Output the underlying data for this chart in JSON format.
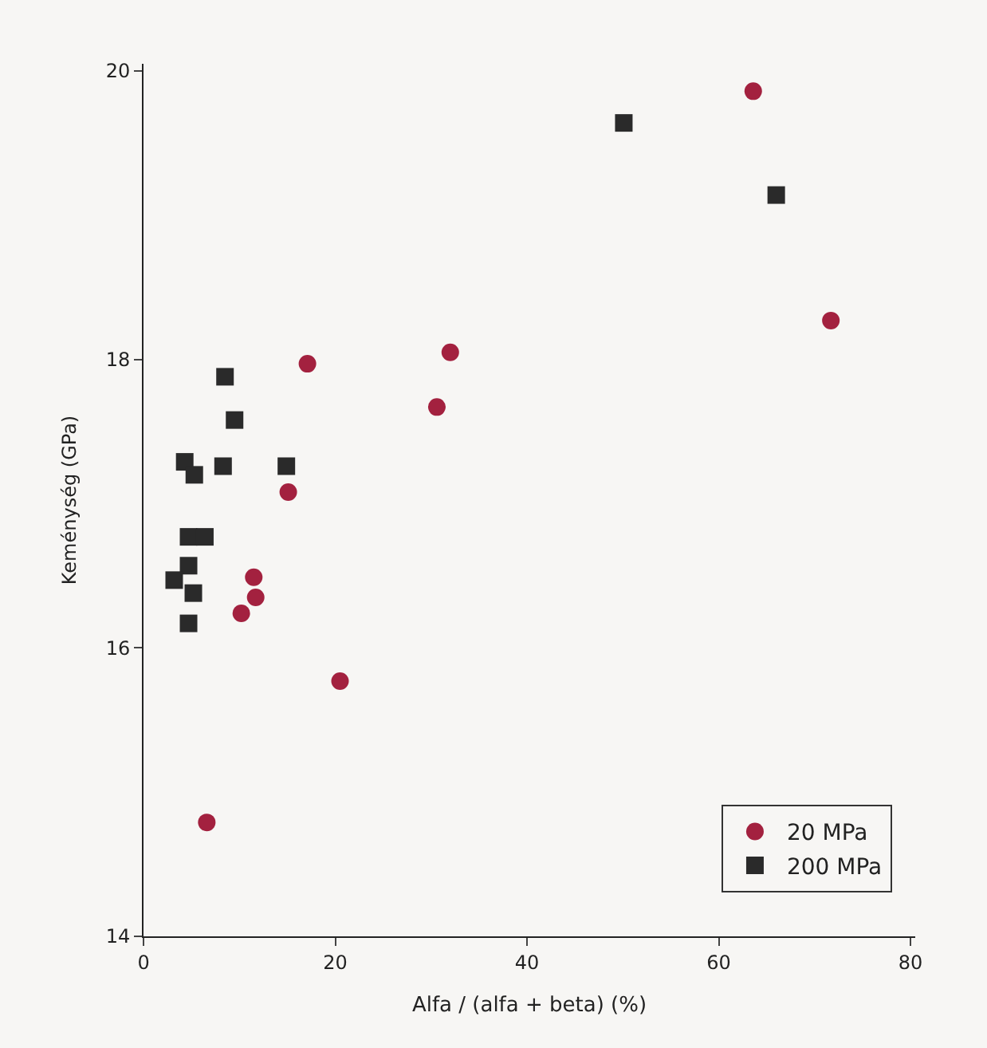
{
  "chart_data": {
    "type": "scatter",
    "xlabel": "Alfa / (alfa + beta) (%)",
    "ylabel": "Keménység (GPa)",
    "xlim": [
      0,
      80.5
    ],
    "xticks": [
      0,
      20,
      40,
      60,
      80
    ],
    "ylim": [
      14,
      20.05
    ],
    "yticks": [
      14,
      16,
      18,
      20
    ],
    "grid": false,
    "legend": "bottom right",
    "series": [
      {
        "name": "20 MPa",
        "color": "#a3213f",
        "marker": "circle",
        "x": [
          63.6,
          71.7,
          32.0,
          30.6,
          17.1,
          15.1,
          11.5,
          11.7,
          10.2,
          20.5,
          6.6
        ],
        "values": [
          19.86,
          18.27,
          18.05,
          17.67,
          17.97,
          17.08,
          16.49,
          16.35,
          16.24,
          15.77,
          14.79
        ]
      },
      {
        "name": "200 MPa",
        "color": "#2a2a2a",
        "marker": "square",
        "x": [
          50.1,
          66.0,
          8.5,
          9.5,
          4.3,
          5.3,
          8.3,
          14.9,
          4.7,
          6.4,
          4.7,
          3.2,
          5.2,
          4.7
        ],
        "values": [
          19.64,
          19.14,
          17.88,
          17.58,
          17.29,
          17.2,
          17.26,
          17.26,
          16.77,
          16.77,
          16.57,
          16.47,
          16.38,
          16.17
        ]
      }
    ]
  }
}
